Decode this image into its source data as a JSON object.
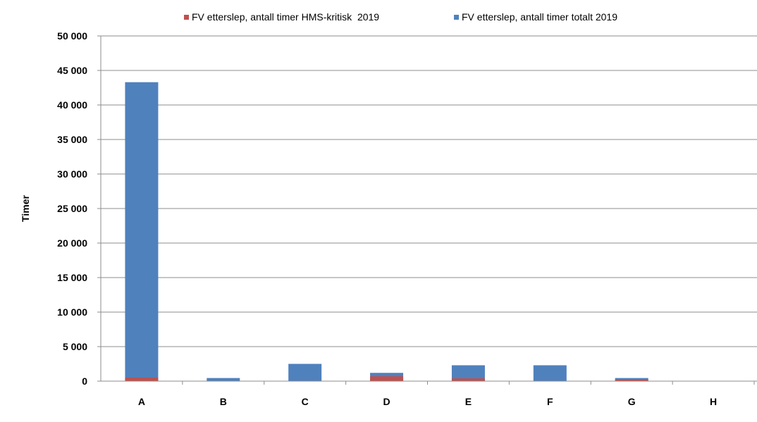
{
  "chart_data": {
    "type": "bar",
    "stacked": true,
    "title": "",
    "xlabel": "",
    "ylabel": "Timer",
    "ylim": [
      0,
      50000
    ],
    "y_ticks": [
      0,
      5000,
      10000,
      15000,
      20000,
      25000,
      30000,
      35000,
      40000,
      45000,
      50000
    ],
    "y_tick_labels": [
      "0",
      "5 000",
      "10 000",
      "15 000",
      "20 000",
      "25 000",
      "30 000",
      "35 000",
      "40 000",
      "45 000",
      "50 000"
    ],
    "grid": true,
    "legend_position": "top",
    "categories": [
      "A",
      "B",
      "C",
      "D",
      "E",
      "F",
      "G",
      "H"
    ],
    "series": [
      {
        "name": "FV etterslep, antall timer HMS-kritisk  2019",
        "color": "#c0504d",
        "values": [
          500,
          0,
          0,
          700,
          400,
          0,
          250,
          0
        ]
      },
      {
        "name": "FV etterslep, antall timer totalt 2019",
        "color": "#4f81bd",
        "values": [
          43300,
          450,
          2500,
          1200,
          2300,
          2300,
          450,
          0
        ]
      }
    ]
  }
}
